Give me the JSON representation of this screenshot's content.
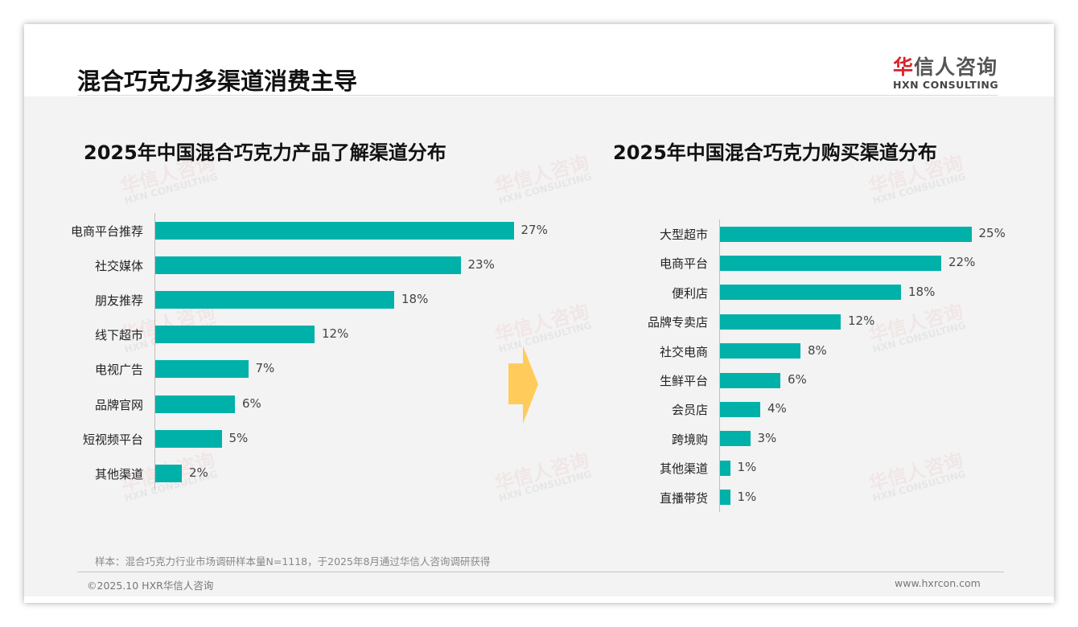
{
  "header": {
    "title": "混合巧克力多渠道消费主导",
    "logo_cn_red": "华",
    "logo_cn_rest": "信人咨询",
    "logo_en": "HXN CONSULTING"
  },
  "watermark": {
    "cn": "华信人咨询",
    "en": "HXN CONSULTING"
  },
  "colors": {
    "bar": "#00b1a9",
    "arrow": "#ffcc5c",
    "logo_red": "#d8232a"
  },
  "chart_data": [
    {
      "type": "bar",
      "orientation": "horizontal",
      "title": "2025年中国混合巧克力产品了解渠道分布",
      "categories": [
        "电商平台推荐",
        "社交媒体",
        "朋友推荐",
        "线下超市",
        "电视广告",
        "品牌官网",
        "短视频平台",
        "其他渠道"
      ],
      "values": [
        27,
        23,
        18,
        12,
        7,
        6,
        5,
        2
      ],
      "unit": "%",
      "xlabel": "",
      "ylabel": ""
    },
    {
      "type": "bar",
      "orientation": "horizontal",
      "title": "2025年中国混合巧克力购买渠道分布",
      "categories": [
        "大型超市",
        "电商平台",
        "便利店",
        "品牌专卖店",
        "社交电商",
        "生鲜平台",
        "会员店",
        "跨境购",
        "其他渠道",
        "直播带货"
      ],
      "values": [
        25,
        22,
        18,
        12,
        8,
        6,
        4,
        3,
        1,
        1
      ],
      "unit": "%",
      "xlabel": "",
      "ylabel": ""
    }
  ],
  "footer": {
    "note": "样本：混合巧克力行业市场调研样本量N=1118，于2025年8月通过华信人咨询调研获得",
    "copyright": "©2025.10 HXR华信人咨询",
    "url": "www.hxrcon.com"
  }
}
